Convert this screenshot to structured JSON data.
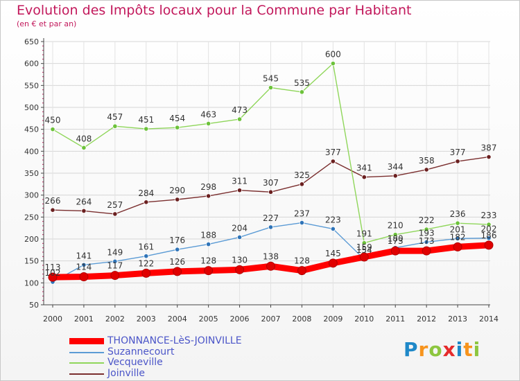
{
  "header": {
    "title": "Evolution des Impôts locaux pour la Commune par Habitant",
    "subtitle": "(en € et par an)"
  },
  "logo": {
    "text": "Proxiti",
    "colors": [
      "#1e88c8",
      "#f7941d",
      "#8dc63f",
      "#e52b2b",
      "#1e88c8",
      "#f7941d",
      "#8dc63f"
    ]
  },
  "colors": {
    "title": "#c2185b",
    "legend_text": "#4b55c8",
    "grid": "#d0d0d0",
    "axis": "#333333"
  },
  "chart_data": {
    "type": "line",
    "title": "Evolution des Impôts locaux pour la Commune par Habitant",
    "subtitle": "(en € et par an)",
    "x": [
      "2000",
      "2001",
      "2002",
      "2003",
      "2004",
      "2005",
      "2006",
      "2007",
      "2008",
      "2009",
      "2010",
      "2011",
      "2012",
      "2013",
      "2014"
    ],
    "ylim": [
      50,
      650
    ],
    "yticks": [
      50,
      100,
      150,
      200,
      250,
      300,
      350,
      400,
      450,
      500,
      550,
      600,
      650
    ],
    "grid": true,
    "legend_position": "bottom-left",
    "series": [
      {
        "name": "THONNANCE-LèS-JOINVILLE",
        "color": "#ff0000",
        "marker": "#e00000",
        "width": 9,
        "values": [
          113,
          114,
          117,
          122,
          126,
          128,
          130,
          138,
          128,
          145,
          159,
          173,
          173,
          182,
          186
        ]
      },
      {
        "name": "Suzannecourt",
        "color": "#5b9bd5",
        "marker": "#2f74b8",
        "width": 1.4,
        "values": [
          102,
          141,
          149,
          161,
          176,
          188,
          204,
          227,
          237,
          223,
          154,
          180,
          193,
          201,
          202
        ]
      },
      {
        "name": "Vecqueville",
        "color": "#8fd65a",
        "marker": "#6cc23a",
        "width": 1.4,
        "values": [
          450,
          408,
          457,
          451,
          454,
          463,
          473,
          545,
          535,
          600,
          191,
          210,
          222,
          236,
          233
        ]
      },
      {
        "name": "Joinville",
        "color": "#7a2e2e",
        "marker": "#6b2020",
        "width": 1.4,
        "values": [
          266,
          264,
          257,
          284,
          290,
          298,
          311,
          307,
          325,
          377,
          341,
          344,
          358,
          377,
          387
        ]
      }
    ],
    "labels": {
      "THONNANCE-LèS-JOINVILLE": [
        "113",
        "114",
        "117",
        "122",
        "126",
        "128",
        "130",
        "138",
        "128",
        "145",
        "159",
        "173",
        "173",
        "182",
        "186"
      ],
      "Suzannecourt": [
        "102",
        "141",
        "149",
        "161",
        "176",
        "188",
        "204",
        "227",
        "237",
        "223",
        "154",
        "180",
        "193",
        "201",
        "202"
      ],
      "Vecqueville": [
        "450",
        "408",
        "457",
        "451",
        "454",
        "463",
        "473",
        "545",
        "535",
        "600",
        "191",
        "210",
        "222",
        "236",
        "233"
      ],
      "Joinville": [
        "266",
        "264",
        "257",
        "284",
        "290",
        "298",
        "311",
        "307",
        "325",
        "377",
        "341",
        "344",
        "358",
        "377",
        "387"
      ]
    }
  }
}
